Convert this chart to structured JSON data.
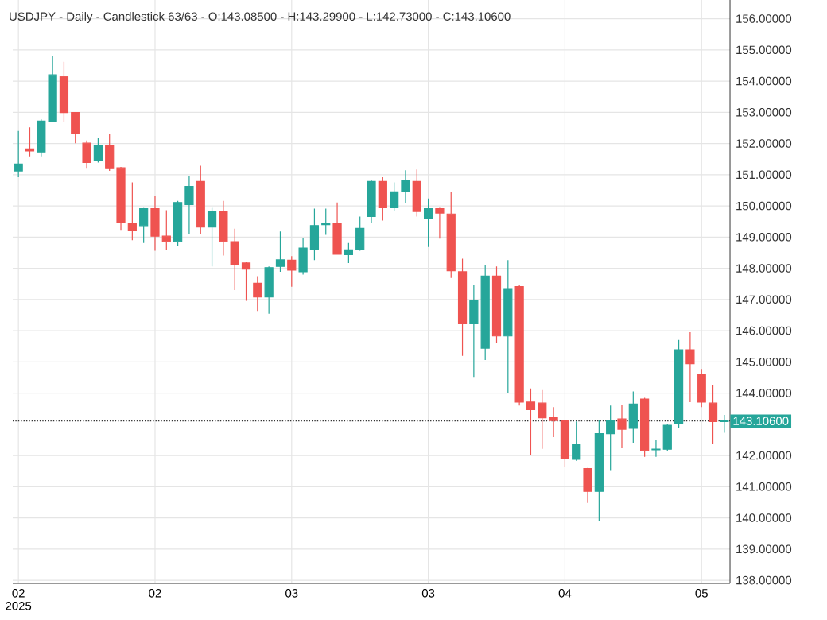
{
  "chart_data": {
    "type": "candlestick",
    "title": "USDJPY - Daily - Candlestick   63/63 - O:143.08500 - H:143.29900 - L:142.73000 - C:143.10600",
    "categories": [
      "02 2025",
      null,
      null,
      null,
      null,
      null,
      null,
      null,
      null,
      null,
      null,
      null,
      "02",
      null,
      null,
      null,
      null,
      null,
      null,
      null,
      null,
      null,
      null,
      null,
      "03",
      null,
      null,
      null,
      null,
      null,
      null,
      null,
      null,
      null,
      null,
      null,
      "03",
      null,
      null,
      null,
      null,
      null,
      null,
      null,
      null,
      null,
      null,
      null,
      "04",
      null,
      null,
      null,
      null,
      null,
      null,
      null,
      null,
      null,
      null,
      null,
      "05",
      null,
      null
    ],
    "ohlc": [
      [
        151.12,
        152.4,
        150.92,
        151.34
      ],
      [
        151.83,
        152.52,
        151.59,
        151.76
      ],
      [
        151.73,
        152.77,
        151.59,
        152.72
      ],
      [
        152.72,
        154.79,
        152.68,
        154.2
      ],
      [
        154.15,
        154.62,
        152.69,
        152.99
      ],
      [
        152.99,
        153.0,
        152.01,
        152.31
      ],
      [
        152.01,
        152.1,
        151.22,
        151.39
      ],
      [
        151.45,
        152.18,
        151.39,
        151.93
      ],
      [
        151.93,
        152.31,
        151.12,
        151.22
      ],
      [
        151.22,
        151.25,
        149.23,
        149.48
      ],
      [
        149.45,
        150.75,
        148.9,
        149.2
      ],
      [
        149.37,
        149.93,
        148.81,
        149.91
      ],
      [
        149.91,
        150.31,
        148.56,
        149.03
      ],
      [
        149.03,
        149.86,
        148.6,
        148.86
      ],
      [
        148.86,
        150.16,
        148.73,
        150.11
      ],
      [
        150.04,
        150.95,
        149.1,
        150.62
      ],
      [
        150.78,
        151.29,
        149.1,
        149.32
      ],
      [
        149.32,
        149.94,
        148.06,
        149.82
      ],
      [
        149.82,
        150.16,
        148.41,
        148.86
      ],
      [
        148.85,
        149.27,
        147.3,
        148.11
      ],
      [
        148.17,
        148.2,
        146.96,
        147.97
      ],
      [
        147.52,
        147.75,
        146.63,
        147.08
      ],
      [
        147.08,
        148.06,
        146.54,
        148.02
      ],
      [
        148.06,
        149.18,
        147.89,
        148.27
      ],
      [
        148.26,
        148.39,
        147.41,
        147.94
      ],
      [
        147.89,
        148.98,
        147.8,
        148.65
      ],
      [
        148.61,
        149.91,
        148.26,
        149.37
      ],
      [
        149.4,
        149.91,
        149.07,
        149.44
      ],
      [
        149.44,
        150.11,
        148.44,
        148.45
      ],
      [
        148.44,
        148.81,
        148.17,
        148.59
      ],
      [
        148.59,
        149.66,
        148.56,
        149.28
      ],
      [
        149.66,
        150.83,
        149.45,
        150.78
      ],
      [
        150.78,
        150.92,
        149.53,
        149.94
      ],
      [
        149.94,
        150.75,
        149.82,
        150.45
      ],
      [
        150.46,
        151.14,
        150.08,
        150.83
      ],
      [
        150.78,
        151.17,
        149.66,
        149.82
      ],
      [
        149.61,
        150.24,
        148.68,
        149.91
      ],
      [
        149.91,
        149.94,
        148.95,
        149.77
      ],
      [
        149.74,
        150.46,
        147.69,
        147.92
      ],
      [
        147.89,
        148.31,
        145.19,
        146.24
      ],
      [
        146.24,
        147.46,
        144.52,
        146.96
      ],
      [
        145.44,
        148.09,
        145.06,
        147.75
      ],
      [
        147.75,
        148.06,
        145.62,
        145.83
      ],
      [
        145.83,
        148.26,
        144.0,
        147.35
      ],
      [
        147.41,
        147.46,
        143.6,
        143.71
      ],
      [
        143.71,
        144.15,
        142.03,
        143.47
      ],
      [
        143.68,
        144.1,
        142.21,
        143.21
      ],
      [
        143.21,
        143.55,
        142.59,
        143.12
      ],
      [
        143.12,
        143.15,
        141.63,
        141.91
      ],
      [
        141.88,
        143.09,
        141.83,
        142.36
      ],
      [
        141.58,
        141.6,
        140.48,
        140.85
      ],
      [
        140.85,
        143.14,
        139.89,
        142.7
      ],
      [
        142.7,
        143.6,
        141.53,
        143.12
      ],
      [
        143.17,
        143.63,
        142.25,
        142.84
      ],
      [
        142.87,
        144.05,
        142.41,
        143.65
      ],
      [
        143.81,
        143.85,
        141.96,
        142.16
      ],
      [
        142.18,
        142.5,
        141.96,
        142.2
      ],
      [
        142.2,
        143.0,
        142.15,
        142.97
      ],
      [
        143.01,
        145.7,
        142.87,
        145.39
      ],
      [
        145.39,
        145.95,
        143.71,
        144.94
      ],
      [
        144.61,
        144.77,
        143.55,
        143.71
      ],
      [
        143.68,
        144.27,
        142.36,
        143.09
      ],
      [
        143.085,
        143.299,
        142.73,
        143.106
      ]
    ],
    "colors": [
      "#26a69a",
      "#ef5350",
      "#26a69a",
      "#26a69a",
      "#ef5350",
      "#ef5350",
      "#ef5350",
      "#26a69a",
      "#ef5350",
      "#ef5350",
      "#ef5350",
      "#26a69a",
      "#ef5350",
      "#ef5350",
      "#26a69a",
      "#26a69a",
      "#ef5350",
      "#26a69a",
      "#ef5350",
      "#ef5350",
      "#ef5350",
      "#ef5350",
      "#26a69a",
      "#26a69a",
      "#ef5350",
      "#26a69a",
      "#26a69a",
      "#26a69a",
      "#ef5350",
      "#26a69a",
      "#26a69a",
      "#26a69a",
      "#ef5350",
      "#26a69a",
      "#26a69a",
      "#ef5350",
      "#26a69a",
      "#ef5350",
      "#ef5350",
      "#ef5350",
      "#26a69a",
      "#26a69a",
      "#ef5350",
      "#26a69a",
      "#ef5350",
      "#ef5350",
      "#ef5350",
      "#ef5350",
      "#ef5350",
      "#26a69a",
      "#ef5350",
      "#26a69a",
      "#26a69a",
      "#ef5350",
      "#26a69a",
      "#ef5350",
      "#26a69a",
      "#26a69a",
      "#26a69a",
      "#ef5350",
      "#ef5350",
      "#ef5350",
      "#26a69a"
    ],
    "ylim": [
      137.9,
      156.6
    ],
    "yticks": [
      {
        "value": 138,
        "label": "138.00000"
      },
      {
        "value": 139,
        "label": "139.00000"
      },
      {
        "value": 140,
        "label": "140.00000"
      },
      {
        "value": 141,
        "label": "141.00000"
      },
      {
        "value": 142,
        "label": "142.00000"
      },
      {
        "value": 144,
        "label": "144.00000"
      },
      {
        "value": 145,
        "label": "145.00000"
      },
      {
        "value": 146,
        "label": "146.00000"
      },
      {
        "value": 147,
        "label": "147.00000"
      },
      {
        "value": 148,
        "label": "148.00000"
      },
      {
        "value": 149,
        "label": "149.00000"
      },
      {
        "value": 150,
        "label": "150.00000"
      },
      {
        "value": 151,
        "label": "151.00000"
      },
      {
        "value": 152,
        "label": "152.00000"
      },
      {
        "value": 153,
        "label": "153.00000"
      },
      {
        "value": 154,
        "label": "154.00000"
      },
      {
        "value": 155,
        "label": "155.00000"
      },
      {
        "value": 156,
        "label": "156.00000"
      }
    ],
    "ref_lines": [
      {
        "axis": "y",
        "value": 143.106,
        "label": "143.10600",
        "color": "#333333",
        "line_style": "dotted"
      }
    ],
    "grid": true
  }
}
